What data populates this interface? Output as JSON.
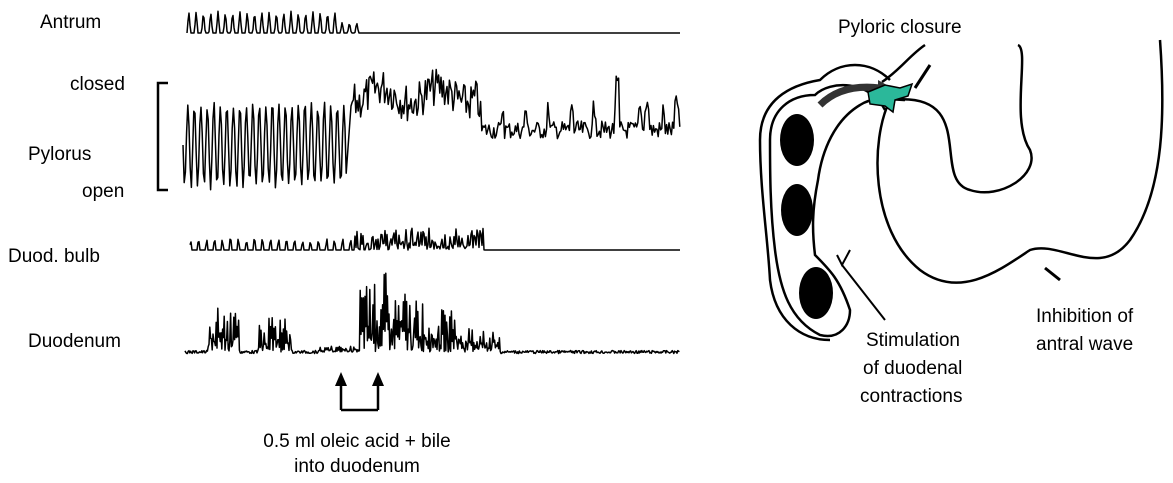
{
  "recording": {
    "traces": [
      {
        "label": "Antrum"
      },
      {
        "label": "Pylorus",
        "top_label": "closed",
        "bottom_label": "open"
      },
      {
        "label": "Duod. bulb"
      },
      {
        "label": "Duodenum"
      }
    ],
    "stimulus": {
      "lines": [
        "0.5 ml oleic acid + bile",
        "into duodenum"
      ]
    }
  },
  "diagram": {
    "pyloric_label": "Pyloric closure",
    "duodenal_label": [
      "Stimulation",
      "of duodenal",
      "contractions"
    ],
    "antral_label": [
      "Inhibition of",
      "antral wave"
    ]
  }
}
